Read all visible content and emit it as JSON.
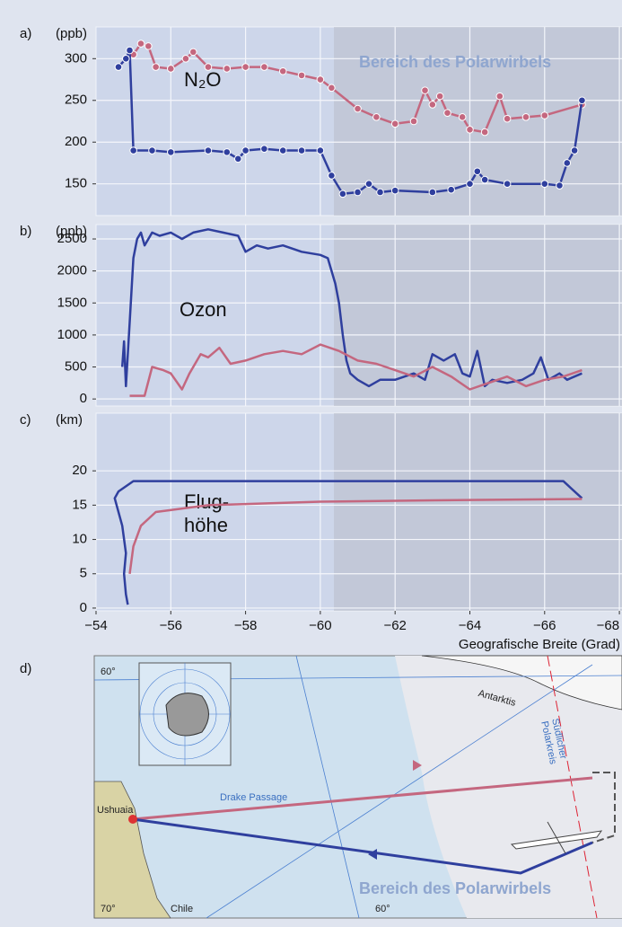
{
  "chart_data": [
    {
      "type": "line",
      "label": "a)",
      "unit": "(ppb)",
      "annotation": "N₂O",
      "region_label": "Bereich des Polarwirbels",
      "markers": true,
      "xlim": [
        -54,
        -68.07
      ],
      "ylim": [
        112,
        338
      ],
      "yticks": [
        150,
        200,
        250,
        300
      ],
      "grid": true,
      "series": [
        {
          "color": "#c4677f",
          "x": [
            -54.6,
            -54.8,
            -55.0,
            -55.2,
            -55.4,
            -55.6,
            -56,
            -56.4,
            -56.6,
            -57,
            -57.5,
            -58,
            -58.5,
            -59,
            -59.5,
            -60,
            -60.3,
            -61,
            -61.5,
            -62,
            -62.5,
            -62.8,
            -63,
            -63.2,
            -63.4,
            -63.8,
            -64,
            -64.4,
            -64.8,
            -65,
            -65.5,
            -66,
            -67
          ],
          "values": [
            290,
            300,
            305,
            318,
            315,
            290,
            288,
            300,
            308,
            290,
            288,
            290,
            290,
            285,
            280,
            275,
            265,
            240,
            230,
            222,
            225,
            262,
            245,
            255,
            235,
            230,
            215,
            212,
            255,
            228,
            230,
            232,
            245
          ]
        },
        {
          "color": "#2f3f9e",
          "x": [
            -54.6,
            -54.8,
            -54.9,
            -55.0,
            -55.5,
            -56,
            -57,
            -57.5,
            -57.8,
            -58,
            -58.5,
            -59,
            -59.5,
            -60,
            -60.3,
            -60.6,
            -61,
            -61.3,
            -61.6,
            -62,
            -63,
            -63.5,
            -64,
            -64.2,
            -64.4,
            -65,
            -66,
            -66.4,
            -66.6,
            -66.8,
            -67
          ],
          "values": [
            290,
            300,
            310,
            190,
            190,
            188,
            190,
            188,
            180,
            190,
            192,
            190,
            190,
            190,
            160,
            138,
            140,
            150,
            140,
            142,
            140,
            143,
            150,
            165,
            155,
            150,
            150,
            148,
            175,
            190,
            250
          ]
        }
      ]
    },
    {
      "type": "line",
      "label": "b)",
      "unit": "(ppb)",
      "annotation": "Ozon",
      "markers": false,
      "xlim": [
        -54,
        -68.07
      ],
      "ylim": [
        -110,
        2725
      ],
      "yticks": [
        0,
        500,
        1000,
        1500,
        2000,
        2500
      ],
      "grid": true,
      "series": [
        {
          "color": "#2f3f9e",
          "x": [
            -54.7,
            -54.75,
            -54.8,
            -54.9,
            -55.0,
            -55.1,
            -55.2,
            -55.3,
            -55.5,
            -55.7,
            -56,
            -56.3,
            -56.6,
            -57,
            -57.4,
            -57.8,
            -58,
            -58.3,
            -58.6,
            -59,
            -59.5,
            -60,
            -60.2,
            -60.4,
            -60.5,
            -60.6,
            -60.7,
            -60.8,
            -61,
            -61.3,
            -61.6,
            -62,
            -62.5,
            -62.8,
            -63,
            -63.3,
            -63.6,
            -63.8,
            -64,
            -64.2,
            -64.4,
            -64.6,
            -65,
            -65.4,
            -65.7,
            -65.9,
            -66.1,
            -66.4,
            -66.6,
            -66.8,
            -67
          ],
          "values": [
            500,
            900,
            200,
            1200,
            2200,
            2500,
            2600,
            2400,
            2600,
            2550,
            2600,
            2500,
            2600,
            2650,
            2600,
            2550,
            2300,
            2400,
            2350,
            2400,
            2300,
            2250,
            2200,
            1800,
            1500,
            1000,
            600,
            400,
            300,
            200,
            300,
            300,
            400,
            300,
            700,
            600,
            700,
            400,
            350,
            750,
            200,
            300,
            250,
            300,
            400,
            650,
            300,
            400,
            300,
            350,
            400
          ]
        },
        {
          "color": "#c4677f",
          "x": [
            -54.9,
            -55.3,
            -55.5,
            -55.8,
            -56,
            -56.3,
            -56.5,
            -56.8,
            -57,
            -57.3,
            -57.6,
            -58,
            -58.5,
            -59,
            -59.5,
            -60,
            -60.5,
            -61,
            -61.5,
            -62,
            -62.5,
            -63,
            -63.5,
            -64,
            -64.5,
            -65,
            -65.5,
            -66,
            -66.5,
            -67
          ],
          "values": [
            50,
            50,
            500,
            450,
            400,
            150,
            400,
            700,
            650,
            800,
            550,
            600,
            700,
            750,
            700,
            850,
            750,
            600,
            550,
            450,
            350,
            500,
            350,
            150,
            250,
            350,
            200,
            300,
            350,
            450
          ]
        }
      ]
    },
    {
      "type": "line",
      "label": "c)",
      "unit": "(km)",
      "annotation": [
        "Flug-",
        "höhe"
      ],
      "markers": false,
      "xlim": [
        -54,
        -68.07
      ],
      "ylim": [
        -0.4,
        28.4
      ],
      "yticks": [
        0,
        5,
        10,
        15,
        20
      ],
      "grid": true,
      "xticks": [
        {
          "value": -54,
          "label": "−54"
        },
        {
          "value": -56,
          "label": "−56"
        },
        {
          "value": -58,
          "label": "−58"
        },
        {
          "value": -60,
          "label": "−60"
        },
        {
          "value": -62,
          "label": "−62"
        },
        {
          "value": -64,
          "label": "−64"
        },
        {
          "value": -66,
          "label": "−66"
        },
        {
          "value": -68,
          "label": "−68"
        }
      ],
      "xlabel": "Geografische Breite (Grad)",
      "series": [
        {
          "color": "#2f3f9e",
          "x": [
            -67,
            -66.5,
            -55,
            -54.6,
            -54.5,
            -54.7,
            -54.8,
            -54.75,
            -54.8,
            -54.85
          ],
          "values": [
            16,
            18.5,
            18.5,
            17,
            16,
            12,
            8,
            5,
            2,
            0.5
          ]
        },
        {
          "color": "#c4677f",
          "x": [
            -54.9,
            -55.0,
            -55.2,
            -55.6,
            -57,
            -60,
            -63,
            -67
          ],
          "values": [
            5,
            9,
            12,
            14,
            15,
            15.5,
            15.7,
            15.9
          ]
        }
      ]
    }
  ],
  "map": {
    "label": "d)",
    "lat60": "60°",
    "antarctica": "Antarktis",
    "drake": "Drake Passage",
    "ushuaia": "Ushuaia",
    "polar_circle": [
      "Südlicher",
      "Polarkreis"
    ],
    "region": "Bereich des Polarwirbels",
    "lon70": "70°",
    "chile": "Chile",
    "lon60": "60°"
  }
}
